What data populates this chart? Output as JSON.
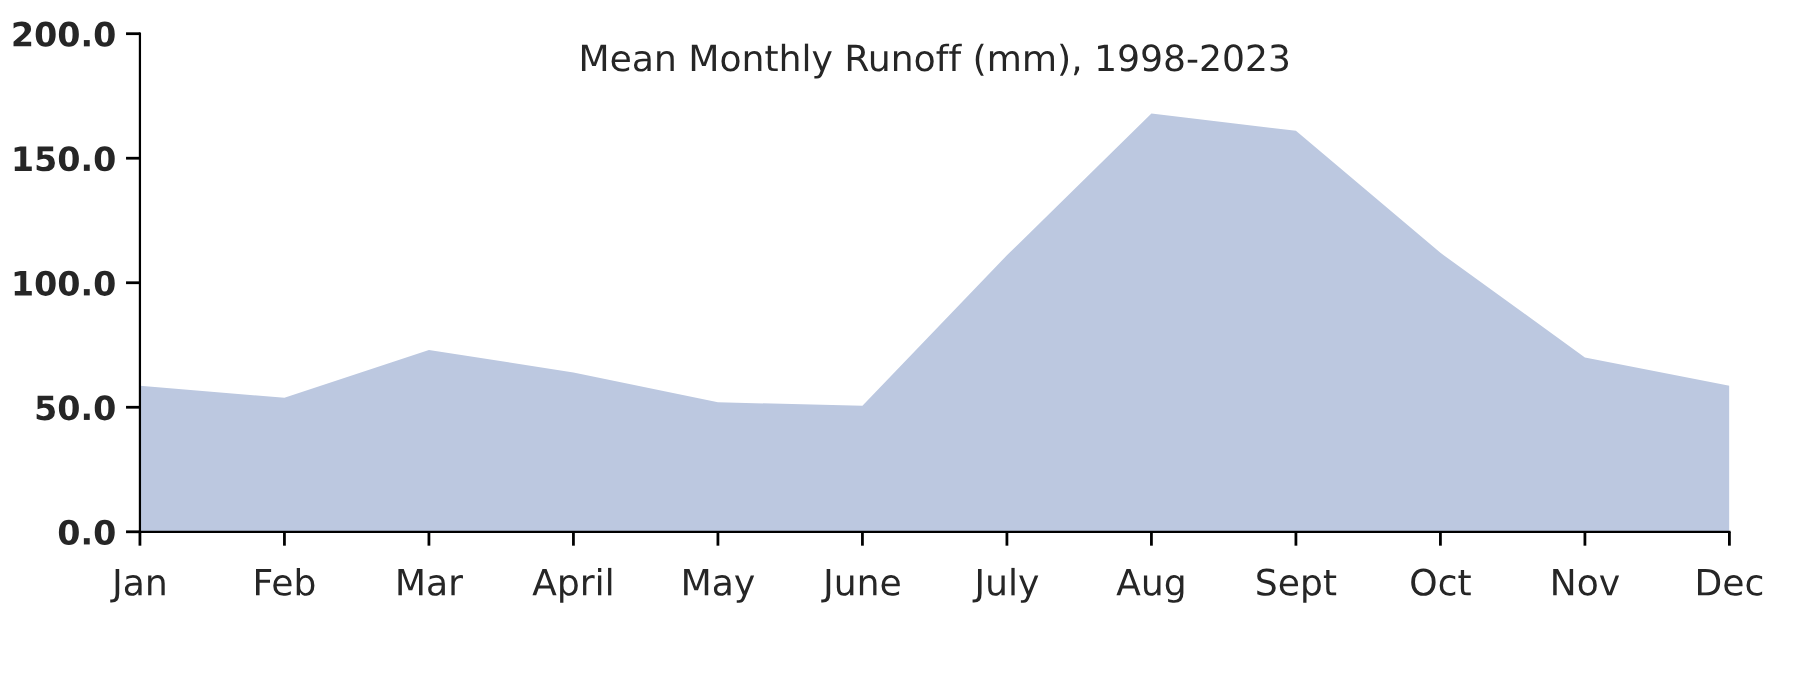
{
  "chart_data": {
    "type": "area",
    "title": "Mean Monthly Runoff (mm), 1998-2023",
    "categories": [
      "Jan",
      "Feb",
      "Mar",
      "April",
      "May",
      "June",
      "July",
      "Aug",
      "Sept",
      "Oct",
      "Nov",
      "Dec"
    ],
    "series": [
      {
        "color": "#bcc8e0",
        "values": [
          58.6,
          53.8,
          73,
          64,
          52,
          50.6,
          111,
          168,
          161,
          112,
          70,
          58.6
        ]
      }
    ],
    "ylim": [
      0,
      200
    ],
    "yticks": [
      {
        "value": 0,
        "label": "0.0"
      },
      {
        "value": 50,
        "label": "50.0"
      },
      {
        "value": 100,
        "label": "100.0"
      },
      {
        "value": 150,
        "label": "150.0"
      },
      {
        "value": 200,
        "label": "200.0"
      }
    ],
    "grid": false,
    "legend": false
  }
}
